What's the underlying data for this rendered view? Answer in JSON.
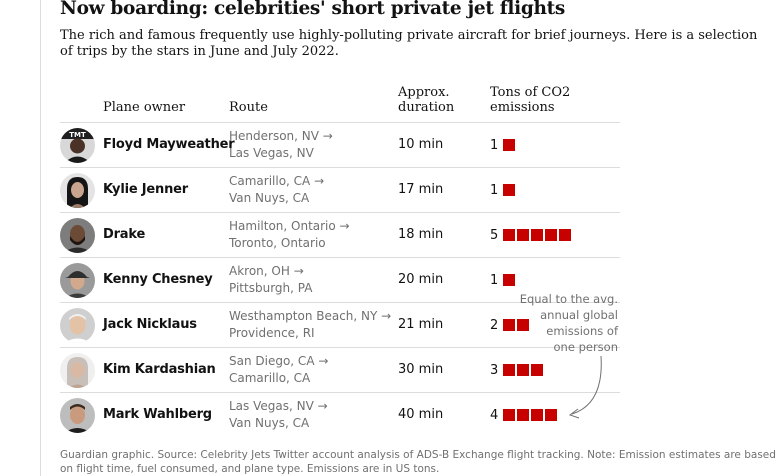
{
  "title": "Now boarding: celebrities' short private jet flights",
  "subtitle": "The rich and famous frequently use highly-polluting private aircraft for brief journeys. Here is a selection of trips by the stars in June and July 2022.",
  "columns": {
    "owner": "Plane owner",
    "route": "Route",
    "duration_line1": "Approx.",
    "duration_line2": "duration",
    "emissions_line1": "Tons of CO2",
    "emissions_line2": "emissions"
  },
  "annotation": {
    "line1": "Equal to the avg.",
    "line2": "annual global",
    "line3": "emissions of",
    "line4": "one person"
  },
  "footer": "Guardian graphic. Source: Celebrity Jets Twitter account analysis of ADS-B Exchange flight tracking. Note: Emission estimates are based on flight time, fuel consumed, and plane type. Emissions are in US tons.",
  "colors": {
    "accent": "#c70000",
    "muted": "#707070",
    "rule": "#dcdcdc"
  },
  "chart_data": {
    "type": "table",
    "title": "Now boarding: celebrities' short private jet flights",
    "unit": "tons of CO2",
    "rows": [
      {
        "owner": "Floyd Mayweather",
        "from": "Henderson, NV →",
        "to": "Las Vegas, NV",
        "duration": "10 min",
        "emissions": 1
      },
      {
        "owner": "Kylie Jenner",
        "from": "Camarillo, CA →",
        "to": "Van Nuys, CA",
        "duration": "17 min",
        "emissions": 1
      },
      {
        "owner": "Drake",
        "from": "Hamilton, Ontario →",
        "to": "Toronto, Ontario",
        "duration": "18 min",
        "emissions": 5
      },
      {
        "owner": "Kenny Chesney",
        "from": "Akron, OH →",
        "to": "Pittsburgh, PA",
        "duration": "20 min",
        "emissions": 1
      },
      {
        "owner": "Jack Nicklaus",
        "from": "Westhampton Beach, NY →",
        "to": "Providence, RI",
        "duration": "21 min",
        "emissions": 2
      },
      {
        "owner": "Kim Kardashian",
        "from": "San Diego, CA →",
        "to": "Camarillo, CA",
        "duration": "30 min",
        "emissions": 3
      },
      {
        "owner": "Mark Wahlberg",
        "from": "Las Vegas, NV →",
        "to": "Van Nuys, CA",
        "duration": "40 min",
        "emissions": 4
      }
    ]
  }
}
